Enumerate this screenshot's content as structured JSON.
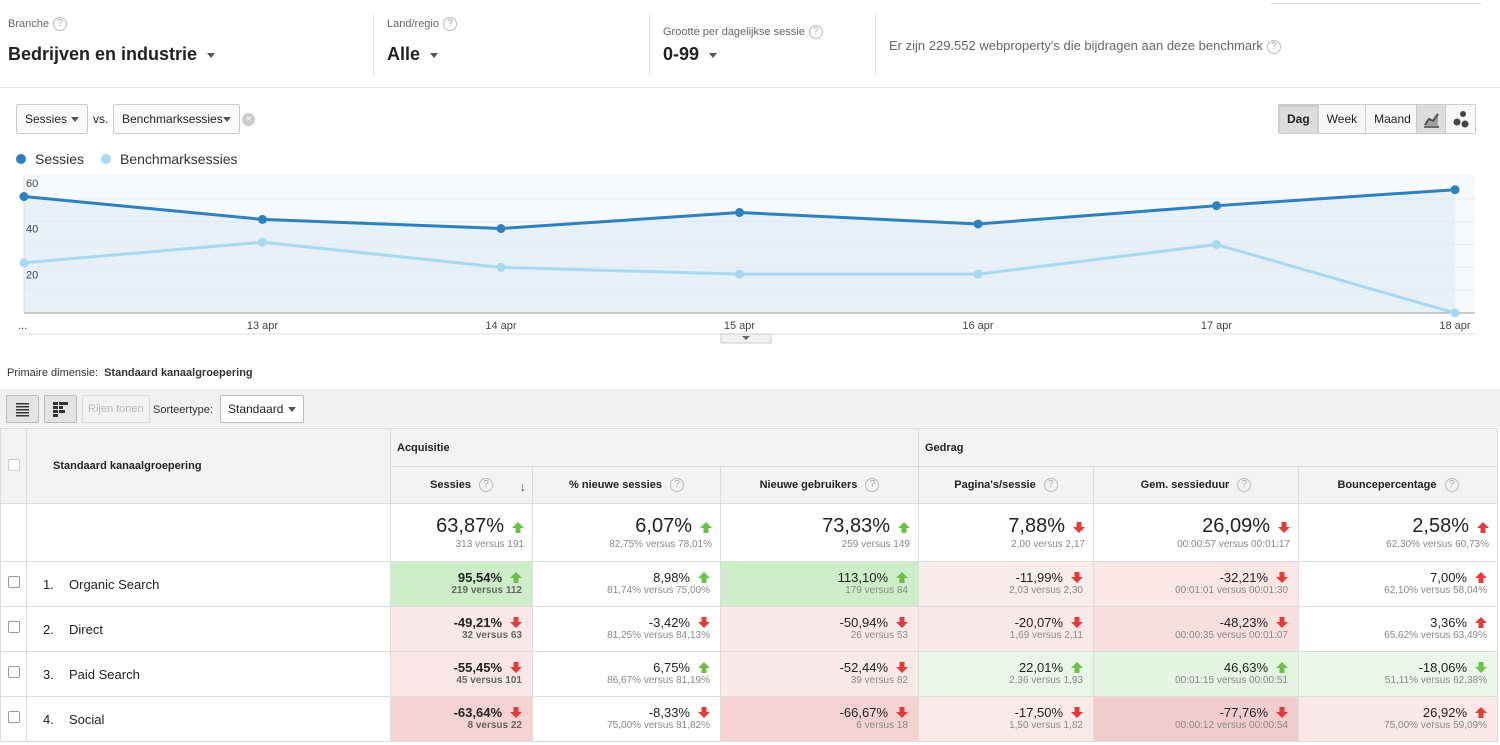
{
  "filters": {
    "branche": {
      "label": "Branche",
      "value": "Bedrijven en industrie"
    },
    "land": {
      "label": "Land/regio",
      "value": "Alle"
    },
    "grootte": {
      "label": "Grootte per dagelijkse sessie",
      "value": "0-99"
    },
    "contrib_text": "Er zijn 229.552 webproperty's die bijdragen aan deze benchmark",
    "help_glyph": "?"
  },
  "controls": {
    "metric1": "Sessies",
    "vs": "vs.",
    "metric2": "Benchmarksessies",
    "remove_glyph": "×",
    "period": [
      "Dag",
      "Week",
      "Maand"
    ],
    "period_selected": "Dag"
  },
  "legend": [
    {
      "label": "Sessies",
      "color": "#2f81be"
    },
    {
      "label": "Benchmarksessies",
      "color": "#a9d8f1"
    }
  ],
  "chart_data": {
    "type": "line",
    "x": [
      "...",
      "13 apr",
      "14 apr",
      "15 apr",
      "16 apr",
      "17 apr",
      "18 apr"
    ],
    "series": [
      {
        "name": "Sessies",
        "color": "#2f81be",
        "values": [
          51,
          41,
          37,
          44,
          39,
          47,
          54
        ]
      },
      {
        "name": "Benchmarksessies",
        "color": "#a9d8f1",
        "values": [
          22,
          31,
          20,
          17,
          17,
          30,
          0
        ]
      }
    ],
    "yticks": [
      60,
      40,
      20
    ],
    "ylim": [
      0,
      60
    ],
    "grid": true
  },
  "dimension": {
    "label": "Primaire dimensie:",
    "value": "Standaard kanaalgroepering"
  },
  "toolbar": {
    "show_rows": "Rijen tonen",
    "sort_label": "Sorteertype:",
    "sort_value": "Standaard"
  },
  "table": {
    "dim_header": "Standaard kanaalgroepering",
    "groups": [
      "Acquisitie",
      "Gedrag"
    ],
    "columns": [
      "Sessies",
      "% nieuwe sessies",
      "Nieuwe gebruikers",
      "Pagina's/sessie",
      "Gem. sessieduur",
      "Bouncepercentage"
    ],
    "totals": [
      {
        "value": "63,87%",
        "sub": "313 versus 191",
        "dir": "up"
      },
      {
        "value": "6,07%",
        "sub": "82,75% versus 78,01%",
        "dir": "up"
      },
      {
        "value": "73,83%",
        "sub": "259 versus 149",
        "dir": "up"
      },
      {
        "value": "7,88%",
        "sub": "2,00 versus 2,17",
        "dir": "down"
      },
      {
        "value": "26,09%",
        "sub": "00:00:57 versus 00:01:17",
        "dir": "down"
      },
      {
        "value": "2,58%",
        "sub": "62,30% versus 60,73%",
        "dir": "up-bad"
      }
    ],
    "rows": [
      {
        "num": "1.",
        "name": "Organic Search",
        "cells": [
          {
            "value": "95,54%",
            "sub": "219 versus 112",
            "dir": "up",
            "bg": "#cdeec8"
          },
          {
            "value": "8,98%",
            "sub": "81,74% versus 75,00%",
            "dir": "up",
            "bg": "#ffffff"
          },
          {
            "value": "113,10%",
            "sub": "179 versus 84",
            "dir": "up",
            "bg": "#cdeec8"
          },
          {
            "value": "-11,99%",
            "sub": "2,03 versus 2,30",
            "dir": "down",
            "bg": "#fbecec"
          },
          {
            "value": "-32,21%",
            "sub": "00:01:01 versus 00:01:30",
            "dir": "down",
            "bg": "#fbe6e6"
          },
          {
            "value": "7,00%",
            "sub": "62,10% versus 58,04%",
            "dir": "up-bad",
            "bg": "#ffffff"
          }
        ]
      },
      {
        "num": "2.",
        "name": "Direct",
        "cells": [
          {
            "value": "-49,21%",
            "sub": "32 versus 63",
            "dir": "down",
            "bg": "#fbe9e9"
          },
          {
            "value": "-3,42%",
            "sub": "81,25% versus 84,13%",
            "dir": "down",
            "bg": "#ffffff"
          },
          {
            "value": "-50,94%",
            "sub": "26 versus 53",
            "dir": "down",
            "bg": "#fbe9e9"
          },
          {
            "value": "-20,07%",
            "sub": "1,69 versus 2,11",
            "dir": "down",
            "bg": "#fbe9e9"
          },
          {
            "value": "-48,23%",
            "sub": "00:00:35 versus 00:01:07",
            "dir": "down",
            "bg": "#f9e0e0"
          },
          {
            "value": "3,36%",
            "sub": "65,62% versus 63,49%",
            "dir": "up-bad",
            "bg": "#ffffff"
          }
        ]
      },
      {
        "num": "3.",
        "name": "Paid Search",
        "cells": [
          {
            "value": "-55,45%",
            "sub": "45 versus 101",
            "dir": "down",
            "bg": "#fae6e6"
          },
          {
            "value": "6,75%",
            "sub": "86,67% versus 81,19%",
            "dir": "up",
            "bg": "#ffffff"
          },
          {
            "value": "-52,44%",
            "sub": "39 versus 82",
            "dir": "down",
            "bg": "#fbe9e9"
          },
          {
            "value": "22,01%",
            "sub": "2,36 versus 1,93",
            "dir": "up",
            "bg": "#eaf7e8"
          },
          {
            "value": "46,63%",
            "sub": "00:01:15 versus 00:00:51",
            "dir": "up",
            "bg": "#e4f5e1"
          },
          {
            "value": "-18,06%",
            "sub": "51,11% versus 62,38%",
            "dir": "down-good",
            "bg": "#ebf7e9"
          }
        ]
      },
      {
        "num": "4.",
        "name": "Social",
        "cells": [
          {
            "value": "-63,64%",
            "sub": "8 versus 22",
            "dir": "down",
            "bg": "#f5d3d3"
          },
          {
            "value": "-8,33%",
            "sub": "75,00% versus 81,82%",
            "dir": "down",
            "bg": "#ffffff"
          },
          {
            "value": "-66,67%",
            "sub": "6 versus 18",
            "dir": "down",
            "bg": "#f5d3d3"
          },
          {
            "value": "-17,50%",
            "sub": "1,50 versus 1,82",
            "dir": "down",
            "bg": "#fbeaea"
          },
          {
            "value": "-77,76%",
            "sub": "00:00:12 versus 00:00:54",
            "dir": "down",
            "bg": "#f3cdcd"
          },
          {
            "value": "26,92%",
            "sub": "75,00% versus 59,09%",
            "dir": "up-bad",
            "bg": "#fbe9e9"
          }
        ]
      }
    ]
  }
}
